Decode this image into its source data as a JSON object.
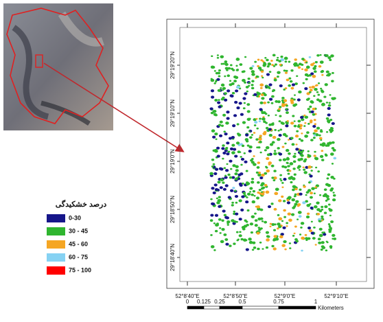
{
  "map": {
    "lat_labels": [
      "29°19'20\"N",
      "29°19'10\"N",
      "29°19'0\"N",
      "29°18'50\"N",
      "29°18'40\"N"
    ],
    "lon_labels": [
      "52°8'40\"E",
      "52°8'50\"E",
      "52°9'0\"E",
      "52°9'10\"E"
    ],
    "scale_labels": [
      "0",
      "0.125",
      "0.25",
      "0.5",
      "0.75",
      "1"
    ],
    "scale_unit": "Kilometers"
  },
  "legend": {
    "title": "درصد خشکیدگی",
    "items": [
      {
        "label": "0-30",
        "color": "#16168a"
      },
      {
        "label": "30 - 45",
        "color": "#2fb52f"
      },
      {
        "label": "45 - 60",
        "color": "#f5a623"
      },
      {
        "label": "60 - 75",
        "color": "#86d2f3"
      },
      {
        "label": "75 - 100",
        "color": "#ff0000"
      }
    ]
  }
}
